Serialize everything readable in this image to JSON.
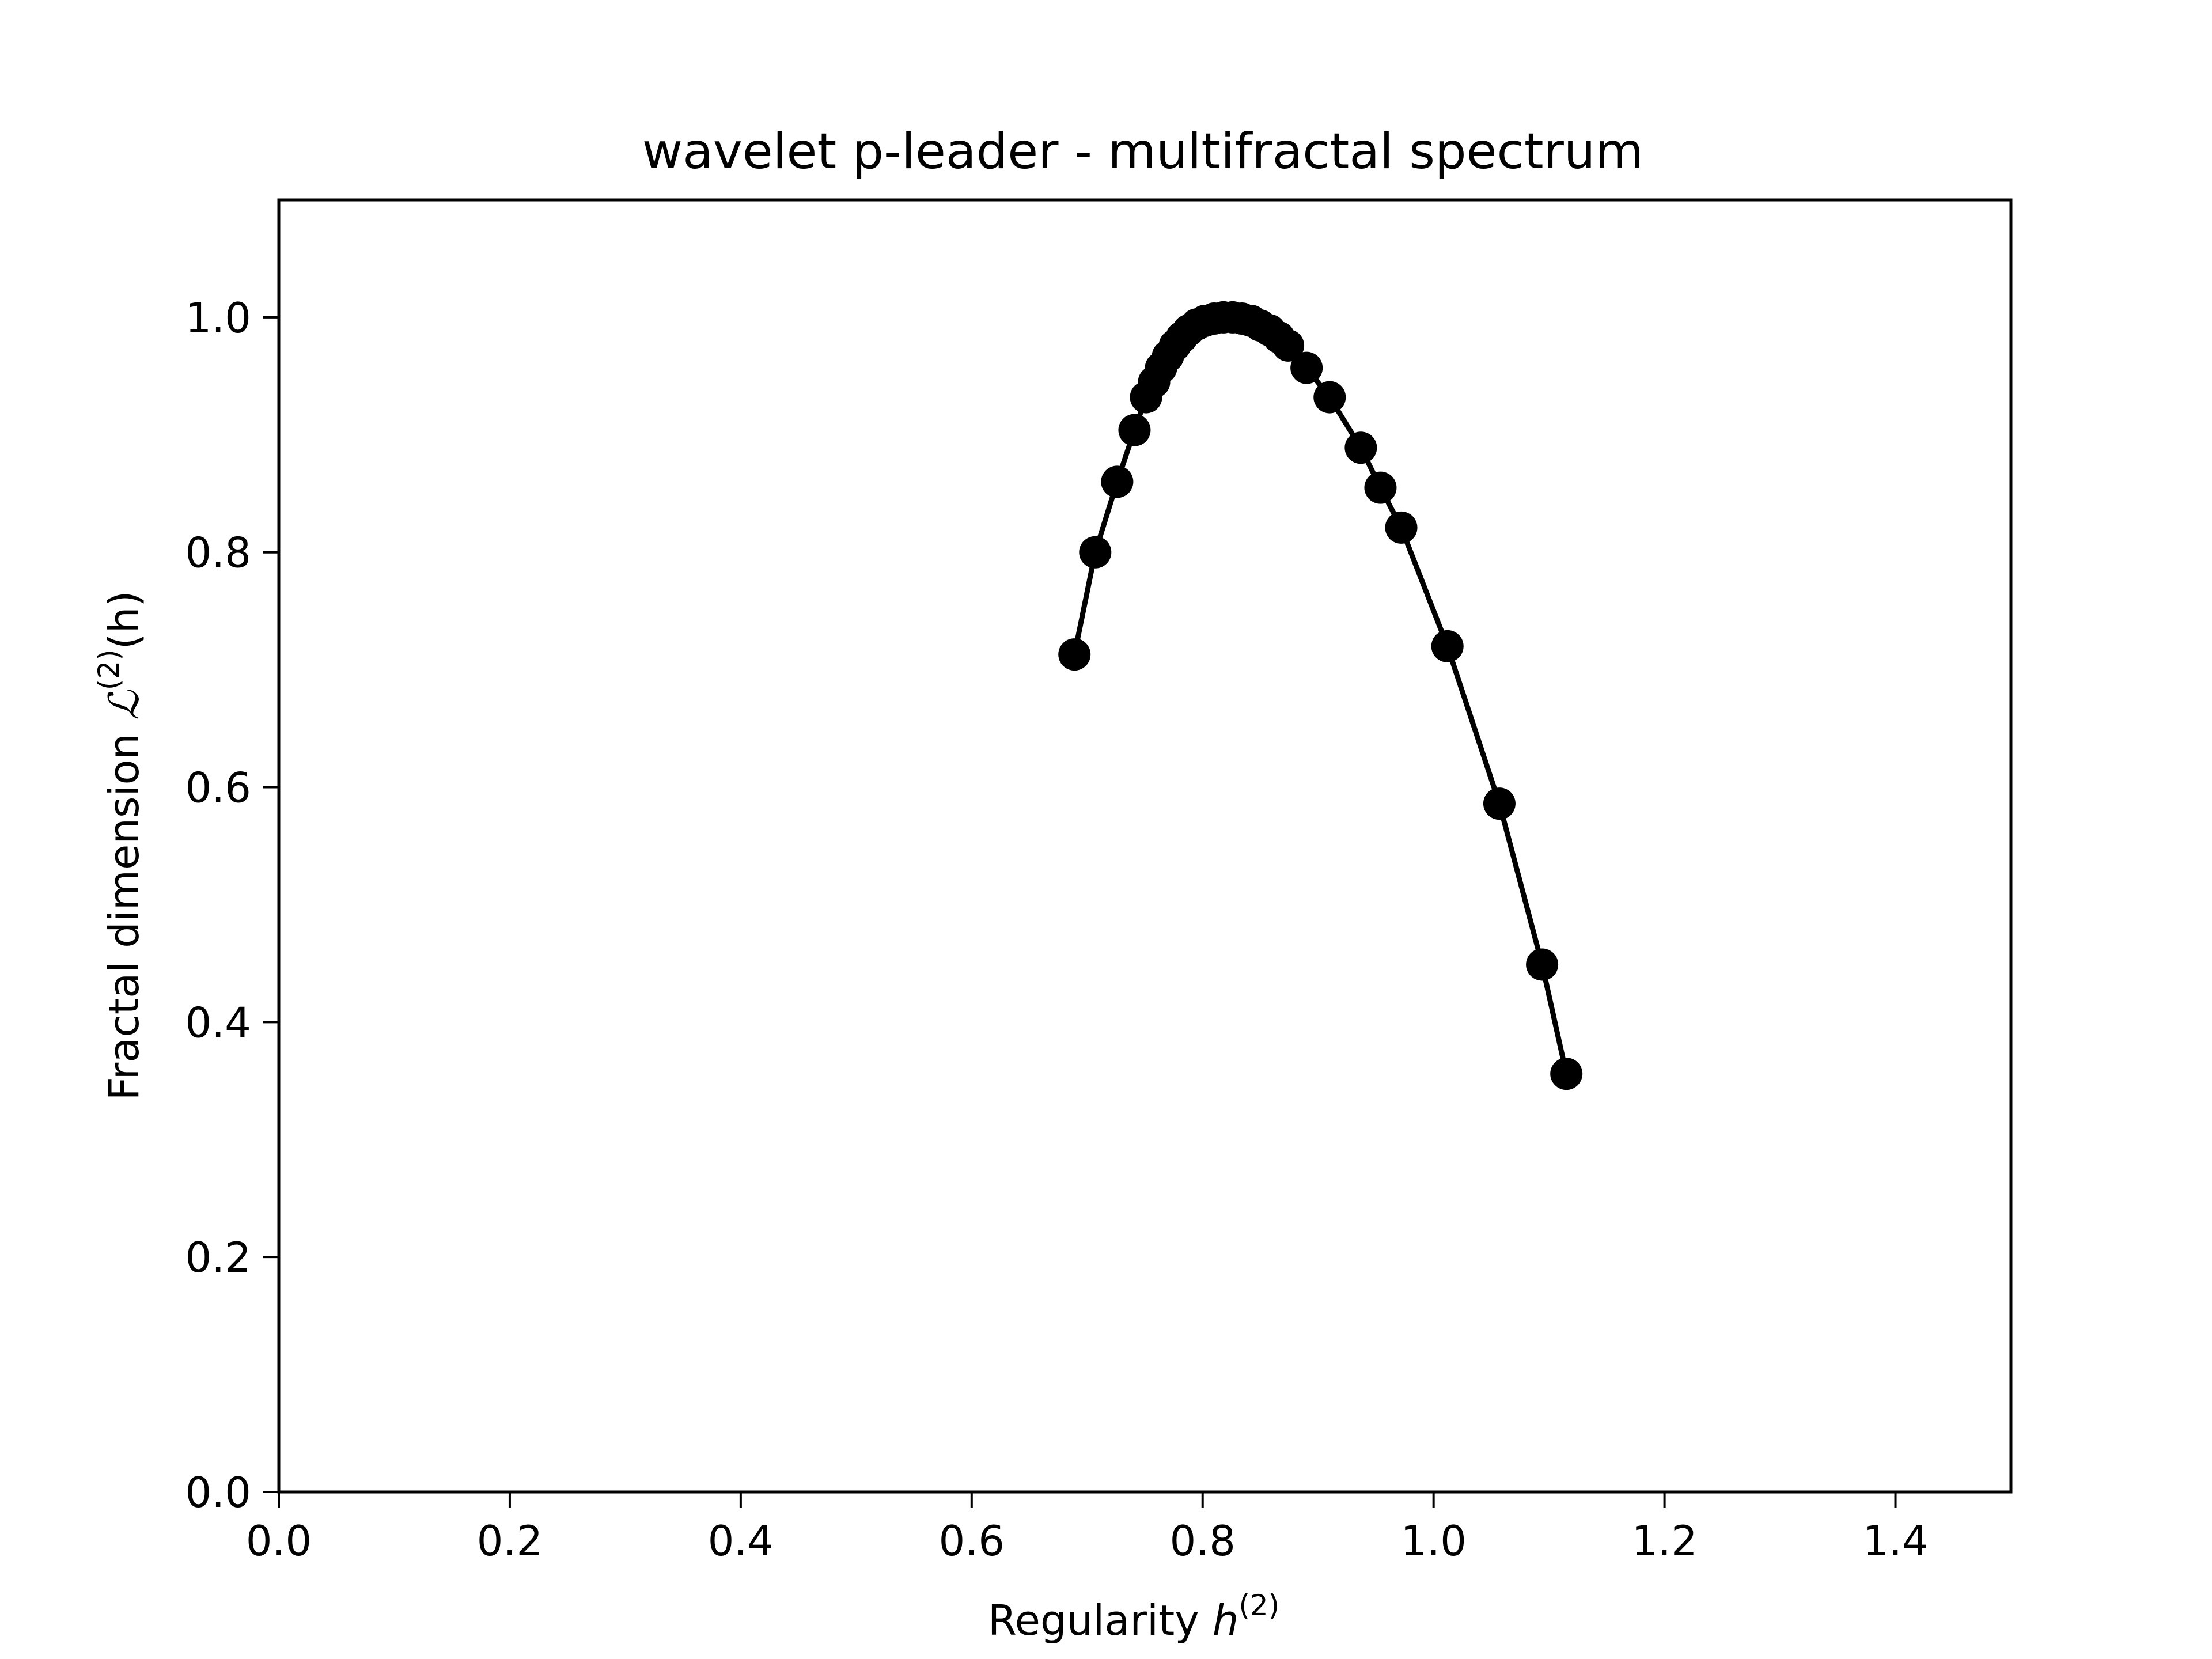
{
  "chart_data": {
    "type": "line",
    "title": "wavelet p-leader - multifractal spectrum",
    "xlabel": "Regularity h^(2)",
    "xlabel_parts": {
      "text": "Regularity ",
      "var": "h",
      "sup": "(2)"
    },
    "ylabel": "Fractal dimension L^(2)(h)",
    "ylabel_parts": {
      "text": "Fractal dimension ",
      "var": "ℒ",
      "sup": "(2)",
      "tail": "(h)"
    },
    "xlim": [
      0.0,
      1.5
    ],
    "ylim": [
      0.0,
      1.1
    ],
    "xticks": [
      "0.0",
      "0.2",
      "0.4",
      "0.6",
      "0.8",
      "1.0",
      "1.2",
      "1.4"
    ],
    "xtick_values": [
      0.0,
      0.2,
      0.4,
      0.6,
      0.8,
      1.0,
      1.2,
      1.4
    ],
    "yticks": [
      "0.0",
      "0.2",
      "0.4",
      "0.6",
      "0.8",
      "1.0"
    ],
    "ytick_values": [
      0.0,
      0.2,
      0.4,
      0.6,
      0.8,
      1.0
    ],
    "grid": false,
    "legend": null,
    "series": [
      {
        "name": "multifractal spectrum",
        "color": "#000000",
        "marker": "circle",
        "x": [
          0.689,
          0.707,
          0.726,
          0.741,
          0.751,
          0.758,
          0.764,
          0.77,
          0.776,
          0.782,
          0.788,
          0.795,
          0.802,
          0.81,
          0.818,
          0.826,
          0.834,
          0.842,
          0.85,
          0.858,
          0.866,
          0.874,
          0.89,
          0.91,
          0.937,
          0.954,
          0.972,
          1.012,
          1.057,
          1.094,
          1.115
        ],
        "y": [
          0.713,
          0.8,
          0.86,
          0.904,
          0.932,
          0.945,
          0.957,
          0.967,
          0.976,
          0.983,
          0.989,
          0.994,
          0.997,
          0.999,
          1.0,
          1.0,
          0.999,
          0.997,
          0.993,
          0.989,
          0.983,
          0.976,
          0.957,
          0.932,
          0.889,
          0.855,
          0.821,
          0.72,
          0.586,
          0.449,
          0.356
        ]
      }
    ]
  }
}
